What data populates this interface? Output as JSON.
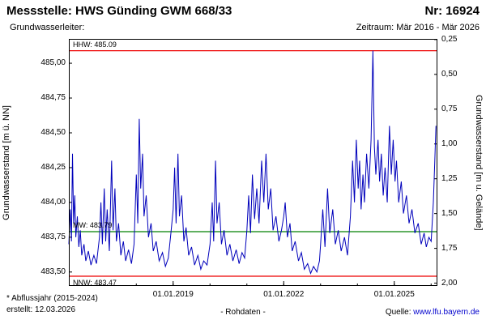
{
  "header": {
    "title": "Messstelle: HWS Günding GWM 668/33",
    "number": "Nr: 16924",
    "aquifer_label": "Grundwasserleiter:",
    "period": "Zeitraum: Mär 2016 - Mär 2026"
  },
  "footer": {
    "note": "* Abflussjahr (2015-2024)",
    "created": "erstellt:  12.03.2026",
    "center": "- Rohdaten -",
    "source_label": "Quelle: ",
    "source_link": "www.lfu.bayern.de"
  },
  "chart_data": {
    "type": "line",
    "title": "",
    "ylabel_left": "Grundwasserstand [m ü. NN]",
    "ylabel_right": "Grundwasserstand [m u. Gelände]",
    "grid": false,
    "legend": "none",
    "ylim_left": [
      483.4,
      485.175
    ],
    "ground_elevation": 485.42,
    "xlim": [
      2016.17,
      2026.17
    ],
    "yticks_left": [
      {
        "v": 483.5,
        "label": "483,50"
      },
      {
        "v": 483.75,
        "label": "483,75"
      },
      {
        "v": 484.0,
        "label": "484,00"
      },
      {
        "v": 484.25,
        "label": "484,25"
      },
      {
        "v": 484.5,
        "label": "484,50"
      },
      {
        "v": 484.75,
        "label": "484,75"
      },
      {
        "v": 485.0,
        "label": "485,00"
      }
    ],
    "yticks_right": [
      {
        "v": 0.25,
        "label": "0,25"
      },
      {
        "v": 0.5,
        "label": "0,50"
      },
      {
        "v": 0.75,
        "label": "0,75"
      },
      {
        "v": 1.0,
        "label": "1,00"
      },
      {
        "v": 1.25,
        "label": "1,25"
      },
      {
        "v": 1.5,
        "label": "1,50"
      },
      {
        "v": 1.75,
        "label": "1,75"
      },
      {
        "v": 2.0,
        "label": "2,00"
      }
    ],
    "xticks": [
      {
        "v": 2019.0,
        "label": "01.01.2019"
      },
      {
        "v": 2022.0,
        "label": "01.01.2022"
      },
      {
        "v": 2025.0,
        "label": "01.01.2025"
      }
    ],
    "xminor": [
      2017,
      2018,
      2019,
      2020,
      2021,
      2022,
      2023,
      2024,
      2025,
      2026
    ],
    "ref_lines": [
      {
        "name": "HHW",
        "value": 485.09,
        "label": "HHW: 485.09",
        "color": "#ee0000",
        "label_pos": "above"
      },
      {
        "name": "MW",
        "value": 483.79,
        "label": "MW: 483.79",
        "color": "#008000",
        "label_pos": "above"
      },
      {
        "name": "NNW",
        "value": 483.47,
        "label": "NNW: 483.47",
        "color": "#ee0000",
        "label_pos": "below"
      }
    ],
    "series": [
      {
        "name": "Rohdaten",
        "color": "#0000bb",
        "points": [
          [
            2016.17,
            483.7
          ],
          [
            2016.21,
            483.95
          ],
          [
            2016.24,
            483.72
          ],
          [
            2016.27,
            484.35
          ],
          [
            2016.3,
            483.85
          ],
          [
            2016.33,
            484.05
          ],
          [
            2016.36,
            483.75
          ],
          [
            2016.4,
            483.9
          ],
          [
            2016.44,
            483.68
          ],
          [
            2016.48,
            483.8
          ],
          [
            2016.52,
            483.62
          ],
          [
            2016.58,
            483.7
          ],
          [
            2016.63,
            483.58
          ],
          [
            2016.7,
            483.65
          ],
          [
            2016.77,
            483.55
          ],
          [
            2016.85,
            483.62
          ],
          [
            2016.92,
            483.56
          ],
          [
            2017.0,
            483.75
          ],
          [
            2017.04,
            484.0
          ],
          [
            2017.08,
            483.7
          ],
          [
            2017.13,
            484.1
          ],
          [
            2017.17,
            483.72
          ],
          [
            2017.21,
            483.95
          ],
          [
            2017.27,
            483.65
          ],
          [
            2017.33,
            484.3
          ],
          [
            2017.37,
            483.8
          ],
          [
            2017.42,
            484.1
          ],
          [
            2017.46,
            483.72
          ],
          [
            2017.52,
            483.85
          ],
          [
            2017.58,
            483.62
          ],
          [
            2017.65,
            483.72
          ],
          [
            2017.71,
            483.58
          ],
          [
            2017.79,
            483.66
          ],
          [
            2017.87,
            483.56
          ],
          [
            2017.94,
            483.7
          ],
          [
            2018.0,
            484.2
          ],
          [
            2018.04,
            483.85
          ],
          [
            2018.08,
            484.6
          ],
          [
            2018.12,
            484.1
          ],
          [
            2018.17,
            484.35
          ],
          [
            2018.21,
            483.9
          ],
          [
            2018.27,
            484.05
          ],
          [
            2018.33,
            483.75
          ],
          [
            2018.4,
            483.85
          ],
          [
            2018.46,
            483.65
          ],
          [
            2018.54,
            483.72
          ],
          [
            2018.62,
            483.58
          ],
          [
            2018.71,
            483.64
          ],
          [
            2018.79,
            483.54
          ],
          [
            2018.87,
            483.6
          ],
          [
            2018.94,
            483.78
          ],
          [
            2019.0,
            483.95
          ],
          [
            2019.04,
            484.25
          ],
          [
            2019.08,
            483.85
          ],
          [
            2019.13,
            484.35
          ],
          [
            2019.17,
            483.9
          ],
          [
            2019.23,
            484.05
          ],
          [
            2019.29,
            483.72
          ],
          [
            2019.35,
            483.82
          ],
          [
            2019.42,
            483.62
          ],
          [
            2019.5,
            483.68
          ],
          [
            2019.58,
            483.55
          ],
          [
            2019.67,
            483.62
          ],
          [
            2019.75,
            483.52
          ],
          [
            2019.83,
            483.58
          ],
          [
            2019.92,
            483.55
          ],
          [
            2020.0,
            483.7
          ],
          [
            2020.06,
            484.0
          ],
          [
            2020.1,
            483.72
          ],
          [
            2020.15,
            484.3
          ],
          [
            2020.19,
            483.85
          ],
          [
            2020.25,
            484.0
          ],
          [
            2020.31,
            483.7
          ],
          [
            2020.38,
            483.8
          ],
          [
            2020.46,
            483.62
          ],
          [
            2020.54,
            483.7
          ],
          [
            2020.62,
            483.58
          ],
          [
            2020.71,
            483.66
          ],
          [
            2020.79,
            483.56
          ],
          [
            2020.87,
            483.64
          ],
          [
            2020.94,
            483.6
          ],
          [
            2021.0,
            483.8
          ],
          [
            2021.05,
            484.05
          ],
          [
            2021.1,
            483.78
          ],
          [
            2021.15,
            484.2
          ],
          [
            2021.21,
            483.88
          ],
          [
            2021.27,
            484.1
          ],
          [
            2021.33,
            483.85
          ],
          [
            2021.4,
            484.3
          ],
          [
            2021.46,
            484.0
          ],
          [
            2021.52,
            484.35
          ],
          [
            2021.58,
            483.95
          ],
          [
            2021.65,
            484.1
          ],
          [
            2021.71,
            483.8
          ],
          [
            2021.79,
            483.9
          ],
          [
            2021.87,
            483.72
          ],
          [
            2021.94,
            483.8
          ],
          [
            2022.0,
            483.9
          ],
          [
            2022.04,
            484.0
          ],
          [
            2022.1,
            483.75
          ],
          [
            2022.17,
            483.85
          ],
          [
            2022.23,
            483.65
          ],
          [
            2022.31,
            483.72
          ],
          [
            2022.4,
            483.58
          ],
          [
            2022.48,
            483.64
          ],
          [
            2022.56,
            483.52
          ],
          [
            2022.65,
            483.56
          ],
          [
            2022.73,
            483.49
          ],
          [
            2022.81,
            483.54
          ],
          [
            2022.9,
            483.5
          ],
          [
            2022.97,
            483.58
          ],
          [
            2023.0,
            483.7
          ],
          [
            2023.06,
            483.95
          ],
          [
            2023.12,
            483.68
          ],
          [
            2023.19,
            484.1
          ],
          [
            2023.25,
            483.78
          ],
          [
            2023.33,
            483.95
          ],
          [
            2023.4,
            483.7
          ],
          [
            2023.48,
            483.8
          ],
          [
            2023.56,
            483.65
          ],
          [
            2023.65,
            483.75
          ],
          [
            2023.73,
            483.62
          ],
          [
            2023.81,
            483.9
          ],
          [
            2023.87,
            484.3
          ],
          [
            2023.92,
            484.0
          ],
          [
            2023.97,
            484.45
          ],
          [
            2024.02,
            484.1
          ],
          [
            2024.06,
            484.3
          ],
          [
            2024.1,
            483.95
          ],
          [
            2024.15,
            484.2
          ],
          [
            2024.19,
            484.0
          ],
          [
            2024.25,
            484.35
          ],
          [
            2024.31,
            484.1
          ],
          [
            2024.37,
            484.45
          ],
          [
            2024.42,
            485.09
          ],
          [
            2024.46,
            484.4
          ],
          [
            2024.5,
            484.2
          ],
          [
            2024.56,
            484.45
          ],
          [
            2024.6,
            484.15
          ],
          [
            2024.65,
            484.35
          ],
          [
            2024.7,
            484.05
          ],
          [
            2024.75,
            484.25
          ],
          [
            2024.81,
            484.0
          ],
          [
            2024.87,
            484.55
          ],
          [
            2024.92,
            484.2
          ],
          [
            2024.97,
            484.45
          ],
          [
            2025.02,
            484.15
          ],
          [
            2025.06,
            484.3
          ],
          [
            2025.12,
            484.0
          ],
          [
            2025.19,
            484.15
          ],
          [
            2025.25,
            483.92
          ],
          [
            2025.33,
            484.05
          ],
          [
            2025.4,
            483.85
          ],
          [
            2025.48,
            483.95
          ],
          [
            2025.56,
            483.78
          ],
          [
            2025.65,
            483.85
          ],
          [
            2025.73,
            483.7
          ],
          [
            2025.81,
            483.78
          ],
          [
            2025.87,
            483.68
          ],
          [
            2025.94,
            483.75
          ],
          [
            2026.0,
            483.72
          ],
          [
            2026.06,
            484.0
          ],
          [
            2026.1,
            484.3
          ],
          [
            2026.13,
            484.55
          ]
        ]
      }
    ]
  },
  "colors": {
    "frame": "#000000",
    "link": "#0000cc"
  }
}
